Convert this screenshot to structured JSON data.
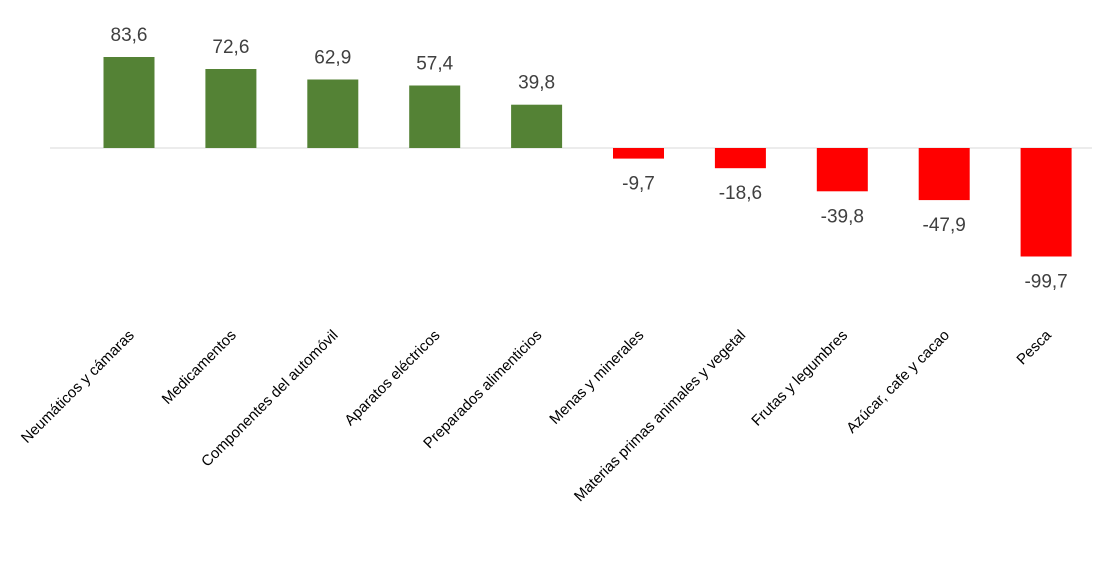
{
  "chart_data": {
    "type": "bar",
    "categories": [
      "Neumáticos y cámaras",
      "Medicamentos",
      "Componentes del automóvil",
      "Aparatos eléctricos",
      "Preparados alimenticios",
      "Menas y minerales",
      "Materias primas animales y vegetal",
      "Frutas y legumbres",
      "Azúcar, cafe y cacao",
      "Pesca"
    ],
    "values": [
      83.6,
      72.6,
      62.9,
      57.4,
      39.8,
      -9.7,
      -18.6,
      -39.8,
      -47.9,
      -99.7
    ],
    "value_labels": [
      "83,6",
      "72,6",
      "62,9",
      "57,4",
      "39,8",
      "-9,7",
      "-18,6",
      "-39,8",
      "-47,9",
      "-99,7"
    ],
    "title": "",
    "xlabel": "",
    "ylabel": "",
    "ylim": [
      -100,
      85
    ],
    "grid": false,
    "legend": "none",
    "colors": {
      "positive": "#548235",
      "negative": "#ff0000",
      "axis": "#d9d9d9",
      "label": "#404040"
    }
  }
}
